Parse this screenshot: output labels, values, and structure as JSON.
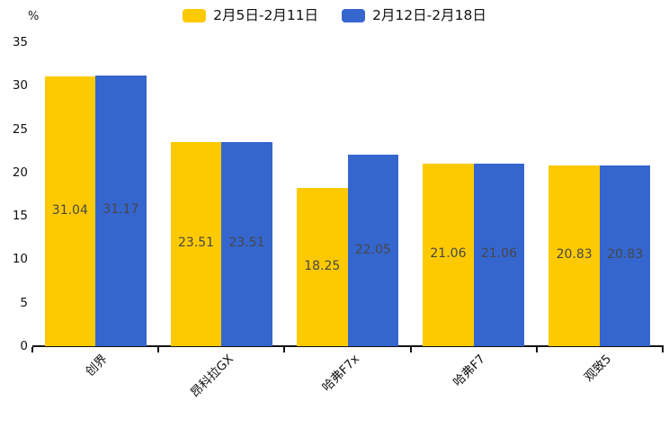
{
  "chart_data": {
    "type": "bar",
    "title": "",
    "categories": [
      "创界",
      "昂科拉GX",
      "哈弗F7x",
      "哈弗F7",
      "观致5"
    ],
    "series": [
      {
        "name": "2月5日-2月11日",
        "color": "#FDCA01",
        "values": [
          31.04,
          23.51,
          18.25,
          21.06,
          20.83
        ]
      },
      {
        "name": "2月12日-2月18日",
        "color": "#3566CE",
        "values": [
          31.17,
          23.51,
          22.05,
          21.06,
          20.83
        ]
      }
    ],
    "xlabel": "",
    "ylabel": "%",
    "ylim": [
      0,
      35
    ],
    "yticks": [
      0,
      5,
      10,
      15,
      20,
      25,
      30,
      35
    ],
    "grid": false,
    "legend_position": "top-center",
    "value_labels": "inside-center",
    "category_label_rotation_deg": 45
  },
  "colors": {
    "background": "#ffffff",
    "axis": "#111111",
    "tick_text": "#111111",
    "bar_value_text": "#474747"
  }
}
